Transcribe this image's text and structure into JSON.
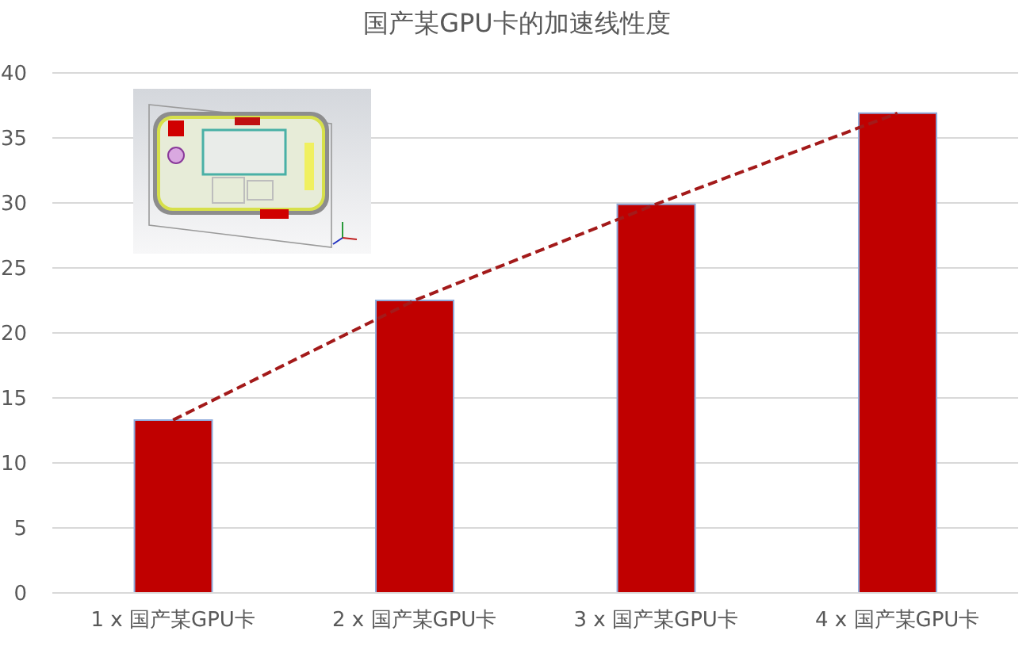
{
  "chart_data": {
    "type": "bar",
    "title": "国产某GPU卡的加速线性度",
    "categories": [
      "1 x 国产某GPU卡",
      "2 x 国产某GPU卡",
      "3 x 国产某GPU卡",
      "4 x 国产某GPU卡"
    ],
    "series": [
      {
        "color": "#c00000",
        "values": [
          13.3,
          22.5,
          29.9,
          36.9
        ]
      },
      {
        "type": "line",
        "color": "#a31a1a",
        "values": [
          13.3,
          22.5,
          29.9,
          36.9
        ]
      }
    ],
    "ylim": [
      0,
      40
    ],
    "yticks": [
      0,
      5,
      10,
      15,
      20,
      25,
      30,
      35,
      40
    ],
    "grid": "y",
    "line_style": "dashed"
  }
}
